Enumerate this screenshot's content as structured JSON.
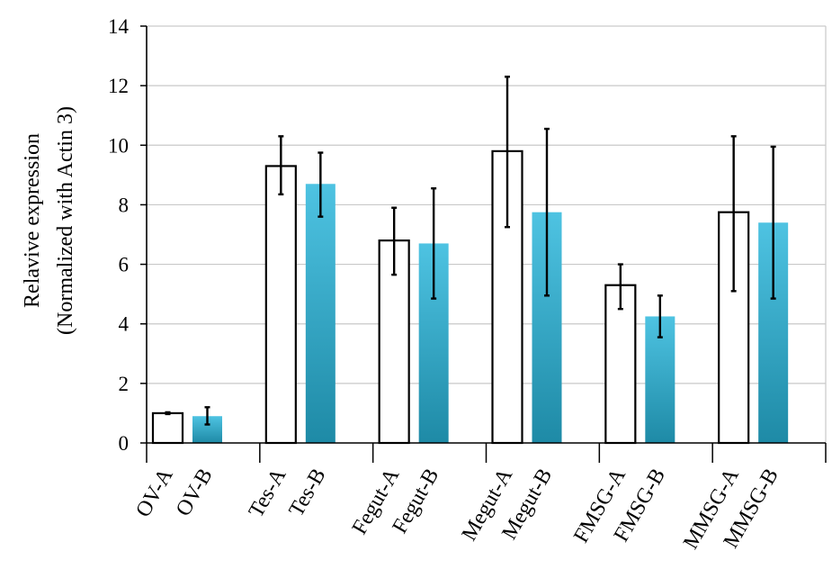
{
  "chart_data": {
    "type": "bar",
    "ylabel_lines": [
      "Relavive expression",
      "(Normalized with Actin 3)"
    ],
    "ylim": [
      0,
      14
    ],
    "yticks": [
      0,
      2,
      4,
      6,
      8,
      10,
      12,
      14
    ],
    "grid": true,
    "categories": [
      "OV-A",
      "OV-B",
      "Tes-A",
      "Tes-B",
      "Fegut-A",
      "Fegut-B",
      "Megut-A",
      "Megut-B",
      "FMSG-A",
      "FMSG-B",
      "MMSG-A",
      "MMSG-B"
    ],
    "values": [
      1.0,
      0.9,
      9.3,
      8.7,
      6.8,
      6.7,
      9.8,
      7.75,
      5.3,
      4.25,
      7.75,
      7.4
    ],
    "error_low": [
      0.97,
      0.62,
      8.35,
      7.6,
      5.65,
      4.85,
      7.25,
      4.95,
      4.5,
      3.55,
      5.1,
      4.85
    ],
    "error_high": [
      1.03,
      1.2,
      10.3,
      9.75,
      7.9,
      8.55,
      12.3,
      10.55,
      6.0,
      4.95,
      10.3,
      9.95
    ],
    "bar_styles": [
      "white",
      "teal",
      "white",
      "teal",
      "white",
      "teal",
      "white",
      "teal",
      "white",
      "teal",
      "white",
      "teal"
    ],
    "colors": {
      "white_fill": "#ffffff",
      "teal_top": "#4ec3e2",
      "teal_bottom": "#1e8aa6",
      "grid": "#c9c9c9",
      "axis": "#000000",
      "error": "#000000"
    }
  }
}
